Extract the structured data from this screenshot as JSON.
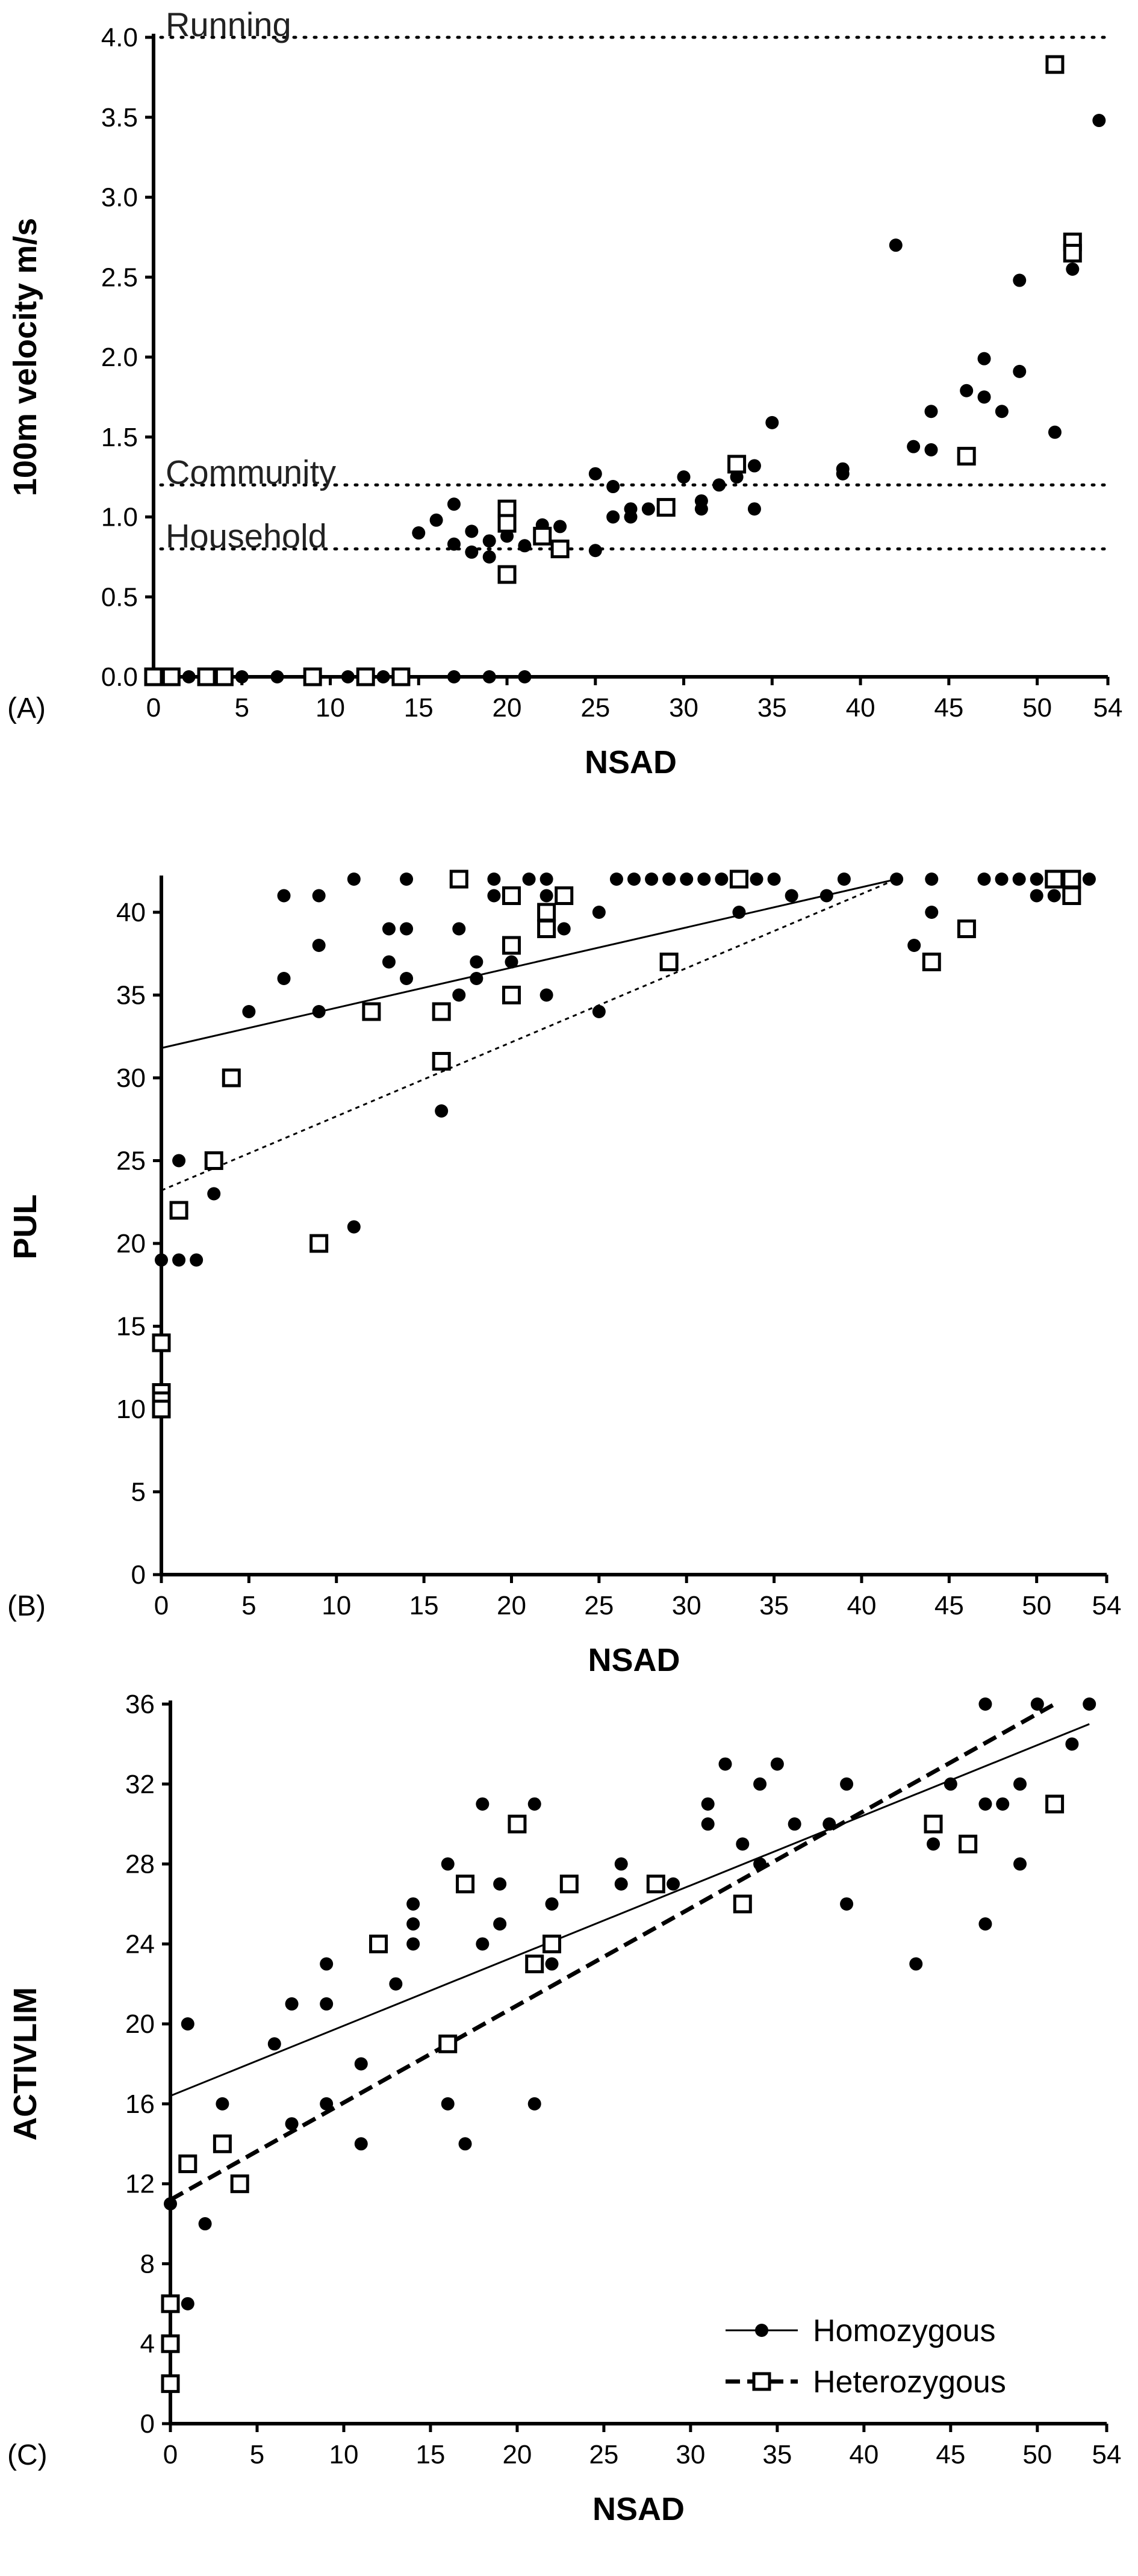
{
  "chart_data": [
    {
      "panel": "(A)",
      "type": "scatter",
      "xlabel": "NSAD",
      "ylabel": "100m velocity m/s",
      "xlim": [
        0,
        54
      ],
      "ylim": [
        0,
        4.0
      ],
      "xticks": [
        "0",
        "5",
        "10",
        "15",
        "20",
        "25",
        "30",
        "35",
        "40",
        "45",
        "50",
        "54"
      ],
      "yticks": [
        "0.0",
        "0.5",
        "1.0",
        "1.5",
        "2.0",
        "2.5",
        "3.0",
        "3.5",
        "4.0"
      ],
      "reference_lines": [
        {
          "label": "Running",
          "y": 4.0
        },
        {
          "label": "Community",
          "y": 1.2
        },
        {
          "label": "Household",
          "y": 0.8
        }
      ],
      "series": [
        {
          "marker": "filled-circle",
          "points": [
            [
              0,
              0
            ],
            [
              0.3,
              0
            ],
            [
              1,
              0
            ],
            [
              2,
              0
            ],
            [
              3,
              0
            ],
            [
              5,
              0
            ],
            [
              7,
              0
            ],
            [
              9,
              0
            ],
            [
              11,
              0
            ],
            [
              13,
              0
            ],
            [
              14,
              0
            ],
            [
              17,
              0
            ],
            [
              19,
              0
            ],
            [
              21,
              0
            ],
            [
              15,
              0.9
            ],
            [
              16,
              0.98
            ],
            [
              17,
              0.83
            ],
            [
              17,
              1.08
            ],
            [
              18,
              0.78
            ],
            [
              18,
              0.91
            ],
            [
              19,
              0.85
            ],
            [
              19,
              0.75
            ],
            [
              20,
              0.88
            ],
            [
              21,
              0.82
            ],
            [
              22,
              0.95
            ],
            [
              23,
              0.94
            ],
            [
              25,
              1.27
            ],
            [
              25,
              0.79
            ],
            [
              26,
              1.0
            ],
            [
              26,
              1.19
            ],
            [
              27,
              1.0
            ],
            [
              27,
              1.05
            ],
            [
              28,
              1.05
            ],
            [
              30,
              1.25
            ],
            [
              31,
              1.1
            ],
            [
              31,
              1.05
            ],
            [
              32,
              1.2
            ],
            [
              33,
              1.25
            ],
            [
              34,
              1.05
            ],
            [
              34,
              1.32
            ],
            [
              35,
              1.59
            ],
            [
              39,
              1.3
            ],
            [
              39,
              1.27
            ],
            [
              42,
              2.7
            ],
            [
              43,
              1.44
            ],
            [
              44,
              1.42
            ],
            [
              44,
              1.66
            ],
            [
              46,
              1.79
            ],
            [
              47,
              1.99
            ],
            [
              47,
              1.75
            ],
            [
              48,
              1.66
            ],
            [
              49,
              1.91
            ],
            [
              49,
              2.48
            ],
            [
              51,
              1.53
            ],
            [
              52,
              2.55
            ],
            [
              53.5,
              3.48
            ]
          ]
        },
        {
          "marker": "open-square",
          "points": [
            [
              0,
              0
            ],
            [
              1,
              0
            ],
            [
              3,
              0
            ],
            [
              4,
              0
            ],
            [
              9,
              0
            ],
            [
              12,
              0
            ],
            [
              14,
              0
            ],
            [
              20,
              1.05
            ],
            [
              20,
              0.96
            ],
            [
              20,
              0.64
            ],
            [
              22,
              0.88
            ],
            [
              23,
              0.8
            ],
            [
              29,
              1.06
            ],
            [
              33,
              1.33
            ],
            [
              46,
              1.38
            ],
            [
              51,
              3.83
            ],
            [
              52,
              2.72
            ],
            [
              52,
              2.65
            ]
          ]
        }
      ]
    },
    {
      "panel": "(B)",
      "type": "scatter",
      "xlabel": "NSAD",
      "ylabel": "PUL",
      "xlim": [
        0,
        54
      ],
      "ylim": [
        0,
        42
      ],
      "xticks": [
        "0",
        "5",
        "10",
        "15",
        "20",
        "25",
        "30",
        "35",
        "40",
        "45",
        "50",
        "54"
      ],
      "yticks": [
        "0",
        "5",
        "10",
        "15",
        "20",
        "25",
        "30",
        "35",
        "40"
      ],
      "trendlines": [
        {
          "style": "solid",
          "from": [
            0,
            31.8
          ],
          "to": [
            42,
            42
          ]
        },
        {
          "style": "dotted",
          "from": [
            0,
            23.2
          ],
          "to": [
            42,
            42
          ]
        }
      ],
      "series": [
        {
          "marker": "filled-circle",
          "points": [
            [
              0,
              19
            ],
            [
              1,
              25
            ],
            [
              1,
              19
            ],
            [
              2,
              19
            ],
            [
              3,
              23
            ],
            [
              5,
              34
            ],
            [
              7,
              36
            ],
            [
              7,
              41
            ],
            [
              9,
              38
            ],
            [
              9,
              34
            ],
            [
              9,
              41
            ],
            [
              11,
              21
            ],
            [
              11,
              42
            ],
            [
              13,
              37
            ],
            [
              13,
              39
            ],
            [
              14,
              42
            ],
            [
              14,
              39
            ],
            [
              14,
              36
            ],
            [
              16,
              28
            ],
            [
              17,
              35
            ],
            [
              17,
              39
            ],
            [
              18,
              36
            ],
            [
              18,
              37
            ],
            [
              19,
              42
            ],
            [
              19,
              41
            ],
            [
              20,
              41
            ],
            [
              20,
              37
            ],
            [
              21,
              42
            ],
            [
              22,
              42
            ],
            [
              22,
              41
            ],
            [
              22,
              35
            ],
            [
              23,
              39
            ],
            [
              25,
              34
            ],
            [
              25,
              40
            ],
            [
              26,
              42
            ],
            [
              27,
              42
            ],
            [
              28,
              42
            ],
            [
              29,
              42
            ],
            [
              30,
              42
            ],
            [
              31,
              42
            ],
            [
              32,
              42
            ],
            [
              33,
              40
            ],
            [
              34,
              42
            ],
            [
              35,
              42
            ],
            [
              36,
              41
            ],
            [
              38,
              41
            ],
            [
              39,
              42
            ],
            [
              42,
              42
            ],
            [
              43,
              38
            ],
            [
              44,
              42
            ],
            [
              44,
              40
            ],
            [
              47,
              42
            ],
            [
              48,
              42
            ],
            [
              49,
              42
            ],
            [
              50,
              42
            ],
            [
              50,
              41
            ],
            [
              51,
              41
            ],
            [
              52,
              42
            ],
            [
              53,
              42
            ]
          ]
        },
        {
          "marker": "open-square",
          "points": [
            [
              0,
              14
            ],
            [
              0,
              11
            ],
            [
              0,
              10.5
            ],
            [
              0,
              10
            ],
            [
              1,
              22
            ],
            [
              3,
              25
            ],
            [
              4,
              30
            ],
            [
              9,
              20
            ],
            [
              12,
              34
            ],
            [
              16,
              31
            ],
            [
              16,
              34
            ],
            [
              17,
              42
            ],
            [
              20,
              41
            ],
            [
              20,
              38
            ],
            [
              20,
              35
            ],
            [
              22,
              40
            ],
            [
              22,
              39
            ],
            [
              23,
              41
            ],
            [
              29,
              37
            ],
            [
              33,
              42
            ],
            [
              44,
              37
            ],
            [
              46,
              39
            ],
            [
              51,
              42
            ],
            [
              52,
              42
            ],
            [
              52,
              41
            ]
          ]
        }
      ]
    },
    {
      "panel": "(C)",
      "type": "scatter",
      "xlabel": "NSAD",
      "ylabel": "ACTIVLIM",
      "xlim": [
        0,
        54
      ],
      "ylim": [
        0,
        36
      ],
      "xticks": [
        "0",
        "5",
        "10",
        "15",
        "20",
        "25",
        "30",
        "35",
        "40",
        "45",
        "50",
        "54"
      ],
      "yticks": [
        "0",
        "4",
        "8",
        "12",
        "16",
        "20",
        "24",
        "28",
        "32",
        "36"
      ],
      "legend": {
        "position": "bottom-right",
        "entries": [
          "Homozygous",
          "Heterozygous"
        ]
      },
      "trendlines": [
        {
          "series": "Homozygous",
          "style": "solid",
          "from": [
            0,
            16.4
          ],
          "to": [
            53,
            35
          ]
        },
        {
          "series": "Heterozygous",
          "style": "dashed",
          "from": [
            0,
            11.2
          ],
          "to": [
            51,
            36
          ]
        }
      ],
      "series": [
        {
          "name": "Homozygous",
          "marker": "filled-circle",
          "points": [
            [
              0,
              11
            ],
            [
              1,
              20
            ],
            [
              1,
              6
            ],
            [
              2,
              10
            ],
            [
              3,
              16
            ],
            [
              6,
              19
            ],
            [
              7,
              21
            ],
            [
              7,
              15
            ],
            [
              9,
              23
            ],
            [
              9,
              21
            ],
            [
              9,
              16
            ],
            [
              11,
              18
            ],
            [
              11,
              14
            ],
            [
              13,
              22
            ],
            [
              14,
              26
            ],
            [
              14,
              25
            ],
            [
              14,
              24
            ],
            [
              16,
              28
            ],
            [
              16,
              16
            ],
            [
              17,
              14
            ],
            [
              18,
              31
            ],
            [
              18,
              24
            ],
            [
              19,
              27
            ],
            [
              19,
              25
            ],
            [
              21,
              31
            ],
            [
              21,
              16
            ],
            [
              22,
              26
            ],
            [
              22,
              23
            ],
            [
              26,
              28
            ],
            [
              26,
              27
            ],
            [
              29,
              27
            ],
            [
              31,
              31
            ],
            [
              31,
              30
            ],
            [
              32,
              33
            ],
            [
              33,
              29
            ],
            [
              34,
              32
            ],
            [
              34,
              28
            ],
            [
              35,
              33
            ],
            [
              36,
              30
            ],
            [
              38,
              30
            ],
            [
              39,
              32
            ],
            [
              39,
              26
            ],
            [
              43,
              23
            ],
            [
              44,
              29
            ],
            [
              45,
              32
            ],
            [
              47,
              36
            ],
            [
              47,
              31
            ],
            [
              47,
              25
            ],
            [
              48,
              31
            ],
            [
              49,
              32
            ],
            [
              49,
              28
            ],
            [
              50,
              36
            ],
            [
              52,
              34
            ],
            [
              53,
              36
            ]
          ]
        },
        {
          "name": "Heterozygous",
          "marker": "open-square",
          "points": [
            [
              0,
              6
            ],
            [
              0,
              4
            ],
            [
              0,
              2
            ],
            [
              1,
              13
            ],
            [
              3,
              14
            ],
            [
              4,
              12
            ],
            [
              12,
              24
            ],
            [
              16,
              19
            ],
            [
              17,
              27
            ],
            [
              20,
              30
            ],
            [
              21,
              23
            ],
            [
              22,
              24
            ],
            [
              23,
              27
            ],
            [
              28,
              27
            ],
            [
              33,
              26
            ],
            [
              44,
              30
            ],
            [
              46,
              29
            ],
            [
              51,
              31
            ]
          ]
        }
      ]
    }
  ]
}
